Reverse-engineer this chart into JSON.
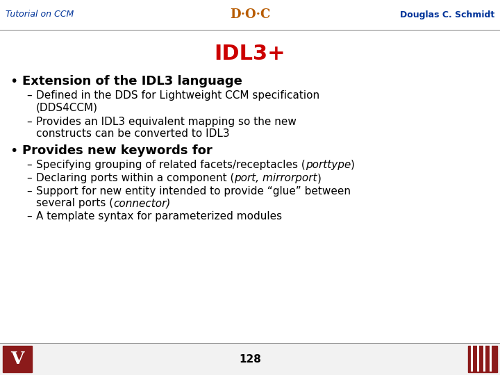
{
  "title": "IDL3+",
  "title_color": "#cc0000",
  "header_left": "Tutorial on CCM",
  "header_right": "Douglas C. Schmidt",
  "header_color": "#003399",
  "page_number": "128",
  "background_color": "#ffffff",
  "bullet1": "Extension of the IDL3 language",
  "bullet2": "Provides new keywords for",
  "sub2d_plain": "A template syntax for parameterized modules",
  "bullet_color": "#000000",
  "bullet_size": 13,
  "sub_size": 11,
  "title_size": 22,
  "header_size": 9,
  "page_size": 11
}
